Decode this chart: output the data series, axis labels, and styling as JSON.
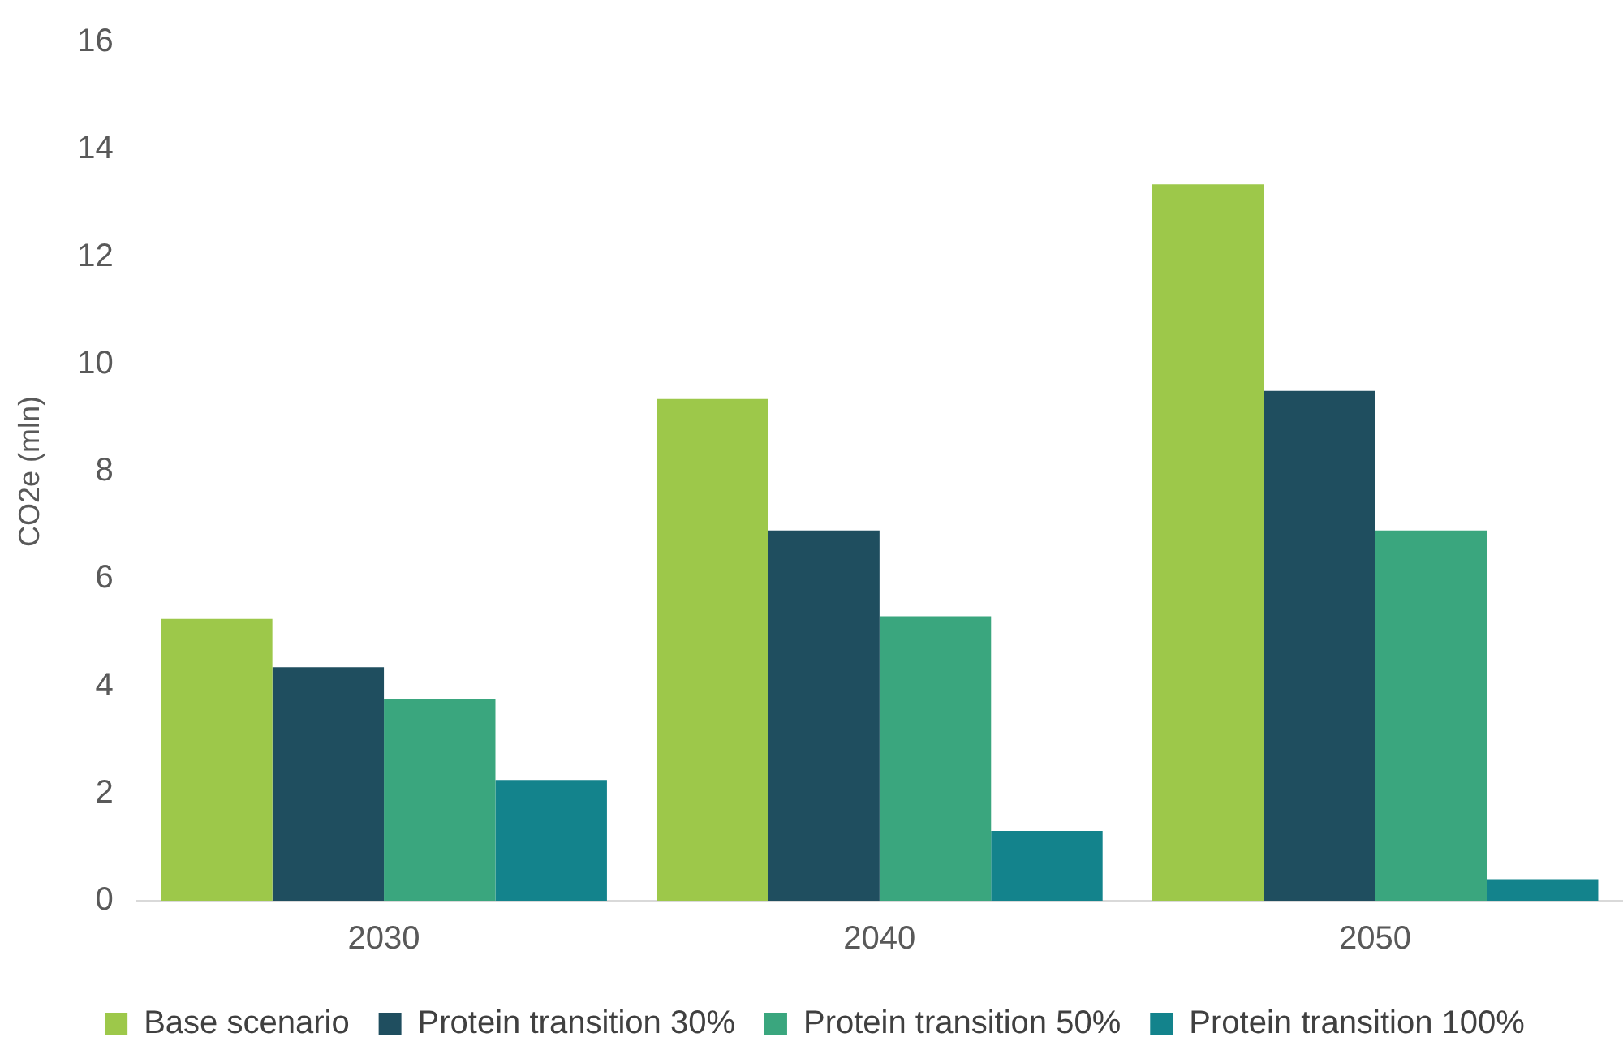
{
  "chart_data": {
    "type": "bar",
    "ylabel": "CO2e (mln)",
    "categories": [
      "2030",
      "2040",
      "2050"
    ],
    "series": [
      {
        "name": "Base scenario",
        "color": "#9dc84a",
        "values": [
          5.25,
          9.35,
          13.35
        ]
      },
      {
        "name": "Protein transition 30%",
        "color": "#1f4e5f",
        "values": [
          4.35,
          6.9,
          9.5
        ]
      },
      {
        "name": "Protein transition 50%",
        "color": "#3aa67e",
        "values": [
          3.75,
          5.3,
          6.9
        ]
      },
      {
        "name": "Protein transition 100%",
        "color": "#13838c",
        "values": [
          2.25,
          1.3,
          0.4
        ]
      }
    ],
    "ylim": [
      0,
      16
    ],
    "yticks": [
      0,
      2,
      4,
      6,
      8,
      10,
      12,
      14,
      16
    ],
    "grid": false,
    "legend": "bottom"
  }
}
